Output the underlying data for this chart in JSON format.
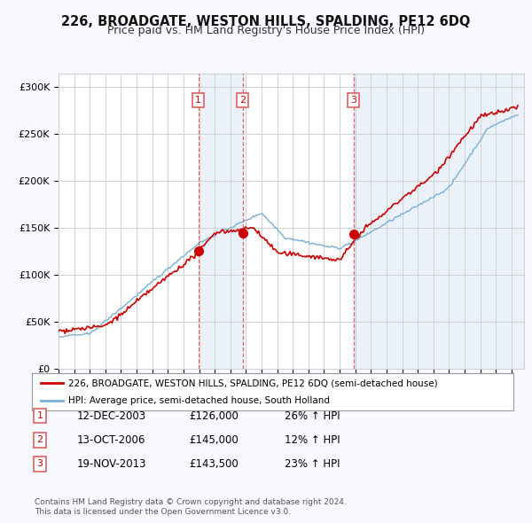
{
  "title": "226, BROADGATE, WESTON HILLS, SPALDING, PE12 6DQ",
  "subtitle": "Price paid vs. HM Land Registry's House Price Index (HPI)",
  "title_fontsize": 10.5,
  "subtitle_fontsize": 9,
  "ylabel_ticks": [
    "£0",
    "£50K",
    "£100K",
    "£150K",
    "£200K",
    "£250K",
    "£300K"
  ],
  "ytick_values": [
    0,
    50000,
    100000,
    150000,
    200000,
    250000,
    300000
  ],
  "ylim": [
    0,
    315000
  ],
  "xlim_start": 1995.0,
  "xlim_end": 2024.8,
  "background_color": "#f8f9ff",
  "plot_bg_color": "#ffffff",
  "shade_color": "#dce8f5",
  "grid_color": "#d0d0d0",
  "red_line_color": "#cc0000",
  "blue_line_color": "#7ab0d4",
  "vline_color": "#e06060",
  "transaction_label_color": "#cc0000",
  "dot_color": "#cc0000",
  "transactions": [
    {
      "num": 1,
      "date": "12-DEC-2003",
      "price": 126000,
      "hpi_pct": "26%",
      "x": 2003.95
    },
    {
      "num": 2,
      "date": "13-OCT-2006",
      "price": 145000,
      "hpi_pct": "12%",
      "x": 2006.79
    },
    {
      "num": 3,
      "date": "19-NOV-2013",
      "price": 143500,
      "hpi_pct": "23%",
      "x": 2013.88
    }
  ],
  "legend_red_label": "226, BROADGATE, WESTON HILLS, SPALDING, PE12 6DQ (semi-detached house)",
  "legend_blue_label": "HPI: Average price, semi-detached house, South Holland",
  "footer_line1": "Contains HM Land Registry data © Crown copyright and database right 2024.",
  "footer_line2": "This data is licensed under the Open Government Licence v3.0.",
  "table_rows": [
    [
      "1",
      "12-DEC-2003",
      "£126,000",
      "26% ↑ HPI"
    ],
    [
      "2",
      "13-OCT-2006",
      "£145,000",
      "12% ↑ HPI"
    ],
    [
      "3",
      "19-NOV-2013",
      "£143,500",
      "23% ↑ HPI"
    ]
  ]
}
